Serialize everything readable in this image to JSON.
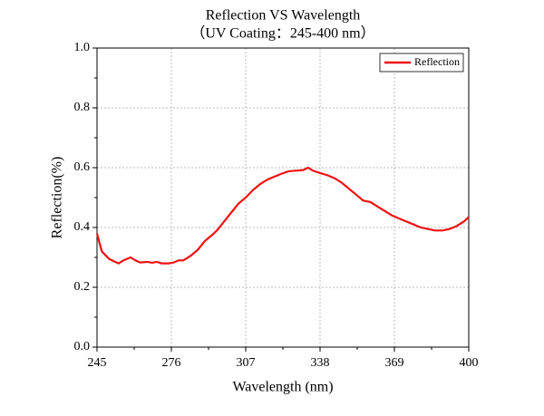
{
  "chart_data": {
    "type": "line",
    "title": "Reflection VS Wavelength",
    "subtitle": "（UV Coating：245-400 nm）",
    "xlabel": "Wavelength (nm)",
    "ylabel": "Reflection(%)",
    "x": [
      245,
      247,
      250,
      252,
      254,
      256,
      259,
      261,
      263,
      266,
      268,
      270,
      272,
      275,
      277,
      279,
      281,
      284,
      287,
      290,
      293,
      295,
      298,
      301,
      304,
      307,
      310,
      313,
      316,
      319,
      322,
      325,
      328,
      331,
      333,
      335,
      338,
      341,
      344,
      347,
      350,
      353,
      356,
      359,
      362,
      365,
      368,
      371,
      374,
      377,
      380,
      383,
      386,
      389,
      392,
      395,
      398,
      400
    ],
    "series": [
      {
        "name": "Reflection",
        "color": "#ee1111",
        "values": [
          0.38,
          0.32,
          0.295,
          0.287,
          0.28,
          0.29,
          0.3,
          0.29,
          0.283,
          0.285,
          0.282,
          0.285,
          0.28,
          0.28,
          0.283,
          0.29,
          0.29,
          0.305,
          0.325,
          0.355,
          0.375,
          0.39,
          0.42,
          0.45,
          0.48,
          0.5,
          0.525,
          0.545,
          0.56,
          0.57,
          0.58,
          0.588,
          0.59,
          0.592,
          0.6,
          0.59,
          0.582,
          0.575,
          0.565,
          0.55,
          0.53,
          0.51,
          0.49,
          0.485,
          0.47,
          0.455,
          0.44,
          0.43,
          0.42,
          0.41,
          0.4,
          0.395,
          0.39,
          0.39,
          0.395,
          0.405,
          0.42,
          0.435
        ]
      }
    ],
    "xlim": [
      245,
      400
    ],
    "xticks": [
      245,
      276,
      307,
      338,
      369,
      400
    ],
    "ylim": [
      0,
      1
    ],
    "yticks": [
      {
        "value": 0,
        "label": "0.0"
      },
      0.2,
      0.4,
      0.6,
      0.8,
      {
        "value": 1,
        "label": "1.0"
      }
    ],
    "grid": true,
    "legend": "upper right"
  }
}
